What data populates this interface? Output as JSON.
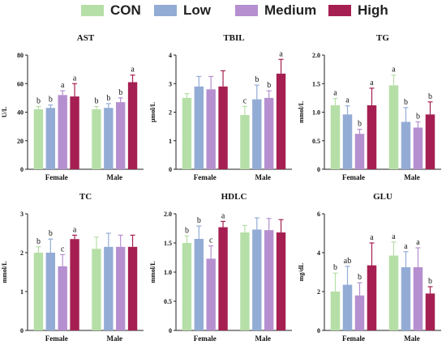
{
  "legend": [
    {
      "name": "CON",
      "color": "#b6dfa7"
    },
    {
      "name": "Low",
      "color": "#93acd5"
    },
    {
      "name": "Medium",
      "color": "#b58fcf"
    },
    {
      "name": "High",
      "color": "#a51f52"
    }
  ],
  "chart_data": [
    {
      "type": "bar",
      "title": "AST",
      "ylabel": "U/L",
      "ylim": [
        0,
        80
      ],
      "yticks": [
        0,
        20,
        40,
        60,
        80
      ],
      "categories": [
        "Female",
        "Male"
      ],
      "series": [
        {
          "name": "CON",
          "values": [
            42,
            42
          ],
          "errors": [
            2,
            2
          ],
          "labels": [
            "b",
            "b"
          ]
        },
        {
          "name": "Low",
          "values": [
            43,
            43
          ],
          "errors": [
            2,
            3
          ],
          "labels": [
            "b",
            "b"
          ]
        },
        {
          "name": "Medium",
          "values": [
            52,
            47
          ],
          "errors": [
            3,
            3
          ],
          "labels": [
            "a",
            "b"
          ]
        },
        {
          "name": "High",
          "values": [
            51,
            61
          ],
          "errors": [
            9,
            5
          ],
          "labels": [
            "a",
            "a"
          ]
        }
      ]
    },
    {
      "type": "bar",
      "title": "TBIL",
      "ylabel": "μmol/L",
      "ylim": [
        0,
        4
      ],
      "yticks": [
        0,
        1,
        2,
        3,
        4
      ],
      "categories": [
        "Female",
        "Male"
      ],
      "series": [
        {
          "name": "CON",
          "values": [
            2.5,
            1.9
          ],
          "errors": [
            0.15,
            0.3
          ],
          "labels": [
            "",
            "c"
          ]
        },
        {
          "name": "Low",
          "values": [
            2.9,
            2.45
          ],
          "errors": [
            0.35,
            0.5
          ],
          "labels": [
            "",
            "b"
          ]
        },
        {
          "name": "Medium",
          "values": [
            2.8,
            2.5
          ],
          "errors": [
            0.45,
            0.25
          ],
          "labels": [
            "",
            "b"
          ]
        },
        {
          "name": "High",
          "values": [
            2.9,
            3.35
          ],
          "errors": [
            0.55,
            0.5
          ],
          "labels": [
            "",
            "a"
          ]
        }
      ]
    },
    {
      "type": "bar",
      "title": "TG",
      "ylabel": "mmol/L",
      "ylim": [
        0,
        2
      ],
      "yticks": [
        0,
        0.5,
        1.0,
        1.5,
        2.0
      ],
      "categories": [
        "Female",
        "Male"
      ],
      "series": [
        {
          "name": "CON",
          "values": [
            1.12,
            1.47
          ],
          "errors": [
            0.12,
            0.18
          ],
          "labels": [
            "a",
            "a"
          ]
        },
        {
          "name": "Low",
          "values": [
            0.96,
            0.83
          ],
          "errors": [
            0.15,
            0.25
          ],
          "labels": [
            "a",
            "b"
          ]
        },
        {
          "name": "Medium",
          "values": [
            0.62,
            0.73
          ],
          "errors": [
            0.08,
            0.1
          ],
          "labels": [
            "b",
            "b"
          ]
        },
        {
          "name": "High",
          "values": [
            1.12,
            0.96
          ],
          "errors": [
            0.3,
            0.22
          ],
          "labels": [
            "a",
            "b"
          ]
        }
      ]
    },
    {
      "type": "bar",
      "title": "TC",
      "ylabel": "mmol/L",
      "ylim": [
        0,
        3
      ],
      "yticks": [
        0,
        1,
        2,
        3
      ],
      "categories": [
        "Female",
        "Male"
      ],
      "series": [
        {
          "name": "CON",
          "values": [
            2.0,
            2.1
          ],
          "errors": [
            0.15,
            0.3
          ],
          "labels": [
            "b",
            ""
          ]
        },
        {
          "name": "Low",
          "values": [
            2.0,
            2.15
          ],
          "errors": [
            0.35,
            0.35
          ],
          "labels": [
            "b",
            ""
          ]
        },
        {
          "name": "Medium",
          "values": [
            1.65,
            2.15
          ],
          "errors": [
            0.3,
            0.3
          ],
          "labels": [
            "c",
            ""
          ]
        },
        {
          "name": "High",
          "values": [
            2.35,
            2.15
          ],
          "errors": [
            0.1,
            0.3
          ],
          "labels": [
            "a",
            ""
          ]
        }
      ]
    },
    {
      "type": "bar",
      "title": "HDLC",
      "ylabel": "mmol/L",
      "ylim": [
        0,
        2
      ],
      "yticks": [
        0,
        0.5,
        1.0,
        1.5,
        2.0
      ],
      "categories": [
        "Female",
        "Male"
      ],
      "series": [
        {
          "name": "CON",
          "values": [
            1.5,
            1.68
          ],
          "errors": [
            0.12,
            0.12
          ],
          "labels": [
            "b",
            ""
          ]
        },
        {
          "name": "Low",
          "values": [
            1.57,
            1.73
          ],
          "errors": [
            0.22,
            0.2
          ],
          "labels": [
            "b",
            ""
          ]
        },
        {
          "name": "Medium",
          "values": [
            1.23,
            1.72
          ],
          "errors": [
            0.22,
            0.2
          ],
          "labels": [
            "c",
            ""
          ]
        },
        {
          "name": "High",
          "values": [
            1.77,
            1.68
          ],
          "errors": [
            0.1,
            0.22
          ],
          "labels": [
            "a",
            ""
          ]
        }
      ]
    },
    {
      "type": "bar",
      "title": "GLU",
      "ylabel": "mg/dL",
      "ylim": [
        0,
        6
      ],
      "yticks": [
        0,
        2,
        4,
        6
      ],
      "categories": [
        "Female",
        "Male"
      ],
      "series": [
        {
          "name": "CON",
          "values": [
            2.0,
            3.85
          ],
          "errors": [
            0.95,
            0.7
          ],
          "labels": [
            "b",
            "a"
          ]
        },
        {
          "name": "Low",
          "values": [
            2.35,
            3.25
          ],
          "errors": [
            0.95,
            0.8
          ],
          "labels": [
            "ab",
            "a"
          ]
        },
        {
          "name": "Medium",
          "values": [
            1.8,
            3.25
          ],
          "errors": [
            0.65,
            1.0
          ],
          "labels": [
            "b",
            "a"
          ]
        },
        {
          "name": "High",
          "values": [
            3.35,
            1.9
          ],
          "errors": [
            1.15,
            0.35
          ],
          "labels": [
            "a",
            "b"
          ]
        }
      ]
    }
  ]
}
